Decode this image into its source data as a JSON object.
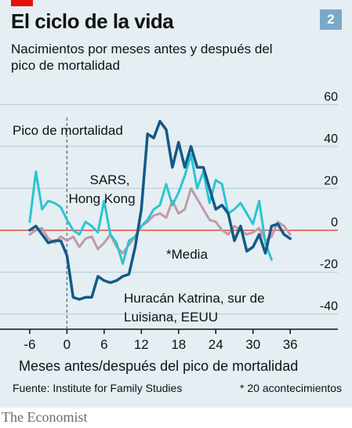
{
  "header": {
    "title": "El ciclo de la vida",
    "subtitle": "Nacimientos por meses antes y después del pico de mortalidad",
    "chart_number": "2"
  },
  "footer": {
    "publisher": "The Economist"
  },
  "colors": {
    "background": "#e4eef3",
    "accent": "#e3120b",
    "number_badge": "#7aa9c7",
    "sars": "#2ec4d0",
    "katrina": "#145a85",
    "average": "#c09aa6",
    "zero_line": "#e0533d"
  },
  "chart_data": {
    "type": "line",
    "title": "El ciclo de la vida",
    "subtitle": "Nacimientos por meses antes y después del pico de mortalidad",
    "xlabel": "Meses antes/después del pico de mortalidad",
    "ylabel": "",
    "xlim": [
      -7,
      38
    ],
    "ylim": [
      -42,
      62
    ],
    "x_ticks": [
      -6,
      0,
      6,
      12,
      18,
      24,
      30,
      36
    ],
    "y_ticks": [
      60,
      40,
      20,
      0,
      -20,
      -40
    ],
    "y_axis_side": "right",
    "grid": "horizontal",
    "reference_line": {
      "x": 0,
      "label": "Pico de mortalidad",
      "style": "dashed"
    },
    "source": "Fuente: Institute for Family Studies",
    "footnote": "* 20 acontecimientos",
    "series": [
      {
        "name": "SARS, Hong Kong",
        "color": "#2ec4d0",
        "x": [
          -6,
          -5,
          -4,
          -3,
          -2,
          -1,
          0,
          1,
          2,
          3,
          4,
          5,
          6,
          7,
          8,
          9,
          10,
          11,
          12,
          13,
          14,
          15,
          16,
          17,
          18,
          19,
          20,
          21,
          22,
          23,
          24,
          25,
          26,
          27,
          28,
          29,
          30,
          31,
          32,
          33
        ],
        "values": [
          4,
          28,
          10,
          14,
          13,
          11,
          5,
          0,
          -2,
          4,
          2,
          -1,
          14,
          -2,
          -6,
          -16,
          -5,
          -3,
          2,
          5,
          10,
          12,
          22,
          12,
          18,
          26,
          36,
          20,
          28,
          13,
          24,
          22,
          8,
          10,
          13,
          8,
          3,
          14,
          -6,
          -14
        ]
      },
      {
        "name": "Huracán Katrina, sur de Luisiana, EEUU",
        "color": "#145a85",
        "x": [
          -6,
          -5,
          -4,
          -3,
          -2,
          -1,
          0,
          1,
          2,
          3,
          4,
          5,
          6,
          7,
          8,
          9,
          10,
          11,
          12,
          13,
          14,
          15,
          16,
          17,
          18,
          19,
          20,
          21,
          22,
          23,
          24,
          25,
          26,
          27,
          28,
          29,
          30,
          31,
          32,
          33,
          34,
          35,
          36
        ],
        "values": [
          0,
          2,
          -2,
          -6,
          -5,
          -5,
          -12,
          -32,
          -33,
          -32,
          -32,
          -22,
          -24,
          -25,
          -24,
          -22,
          -21,
          -8,
          10,
          46,
          44,
          52,
          48,
          30,
          42,
          30,
          40,
          30,
          30,
          20,
          10,
          12,
          8,
          -5,
          2,
          -10,
          -8,
          -2,
          -11,
          2,
          3,
          -2,
          -4
        ]
      },
      {
        "name": "*Media",
        "color": "#c09aa6",
        "x": [
          -6,
          -5,
          -4,
          -3,
          -2,
          -1,
          0,
          1,
          2,
          3,
          4,
          5,
          6,
          7,
          8,
          9,
          10,
          11,
          12,
          13,
          14,
          15,
          16,
          17,
          18,
          19,
          20,
          21,
          22,
          23,
          24,
          25,
          26,
          27,
          28,
          29,
          30,
          31,
          32,
          33,
          34,
          35,
          36
        ],
        "values": [
          -2,
          0,
          1,
          -4,
          -6,
          -3,
          -5,
          -3,
          -8,
          -4,
          -3,
          -9,
          -6,
          -2,
          -8,
          -11,
          -7,
          -3,
          2,
          4,
          7,
          8,
          6,
          14,
          8,
          10,
          20,
          15,
          10,
          5,
          4,
          0,
          -2,
          2,
          0,
          -2,
          -1,
          1,
          -5,
          -3,
          4,
          2,
          -2
        ]
      }
    ],
    "annotations": [
      {
        "text": "SARS,",
        "series": "SARS, Hong Kong",
        "line": 1
      },
      {
        "text": "Hong Kong",
        "series": "SARS, Hong Kong",
        "line": 2
      },
      {
        "text": "*Media",
        "series": "*Media",
        "line": 1
      },
      {
        "text": "Huracán Katrina, sur de",
        "series": "Huracán Katrina, sur de Luisiana, EEUU",
        "line": 1
      },
      {
        "text": "Luisiana, EEUU",
        "series": "Huracán Katrina, sur de Luisiana, EEUU",
        "line": 2
      }
    ]
  }
}
